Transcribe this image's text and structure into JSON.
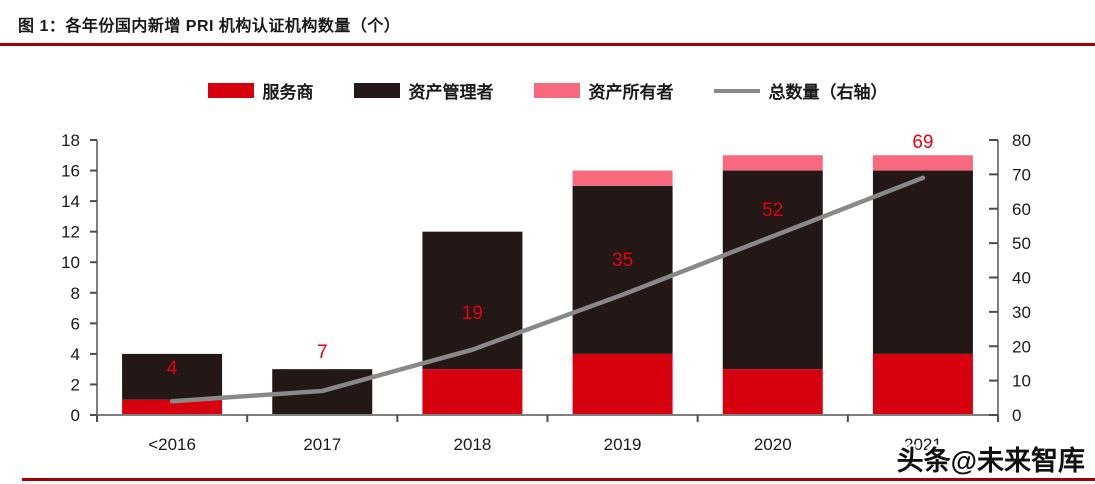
{
  "header": {
    "title": "图 1：各年份国内新增 PRI 机构认证机构数量（个）"
  },
  "watermark": {
    "text": "头条@未来智库"
  },
  "colors": {
    "service_red": "#D7000F",
    "manager_dark": "#231815",
    "owner_pink": "#F8697D",
    "line_gray": "#898989",
    "label_red": "#E60012",
    "rule_dark_red": "#A30008",
    "axis_line": "#7f7f7f",
    "tick_mark": "#4d4d4d",
    "axis_text": "#1a1a1a"
  },
  "chart_data": {
    "type": "bar",
    "subtype": "stacked-bar-with-line",
    "title": "各年份国内新增 PRI 机构认证机构数量（个）",
    "categories": [
      "<2016",
      "2017",
      "2018",
      "2019",
      "2020",
      "2021"
    ],
    "series": [
      {
        "name": "服务商",
        "type": "bar",
        "axis": "left",
        "color": "#D7000F",
        "values": [
          1,
          0,
          3,
          4,
          3,
          4
        ]
      },
      {
        "name": "资产管理者",
        "type": "bar",
        "axis": "left",
        "color": "#231815",
        "values": [
          3,
          3,
          9,
          11,
          13,
          12
        ]
      },
      {
        "name": "资产所有者",
        "type": "bar",
        "axis": "left",
        "color": "#F8697D",
        "values": [
          0,
          0,
          0,
          1,
          1,
          1
        ]
      },
      {
        "name": "总数量（右轴）",
        "type": "line",
        "axis": "right",
        "color": "#898989",
        "values": [
          4,
          7,
          19,
          35,
          52,
          69
        ]
      }
    ],
    "data_labels": {
      "values": [
        "4",
        "7",
        "19",
        "35",
        "52",
        "69"
      ],
      "color": "#E60012"
    },
    "left_axis": {
      "min": 0,
      "max": 18,
      "step": 2,
      "tick_labels": [
        "0",
        "2",
        "4",
        "6",
        "8",
        "10",
        "12",
        "14",
        "16",
        "18"
      ]
    },
    "right_axis": {
      "min": 0,
      "max": 80,
      "step": 10,
      "tick_labels": [
        "0",
        "10",
        "20",
        "30",
        "40",
        "50",
        "60",
        "70",
        "80"
      ]
    },
    "legend": {
      "position": "top-center",
      "items": [
        {
          "label": "服务商",
          "swatch": "rect",
          "color": "#D7000F"
        },
        {
          "label": "资产管理者",
          "swatch": "rect",
          "color": "#231815"
        },
        {
          "label": "资产所有者",
          "swatch": "rect",
          "color": "#F8697D"
        },
        {
          "label": "总数量（右轴）",
          "swatch": "line",
          "color": "#898989"
        }
      ]
    },
    "grid": false
  }
}
